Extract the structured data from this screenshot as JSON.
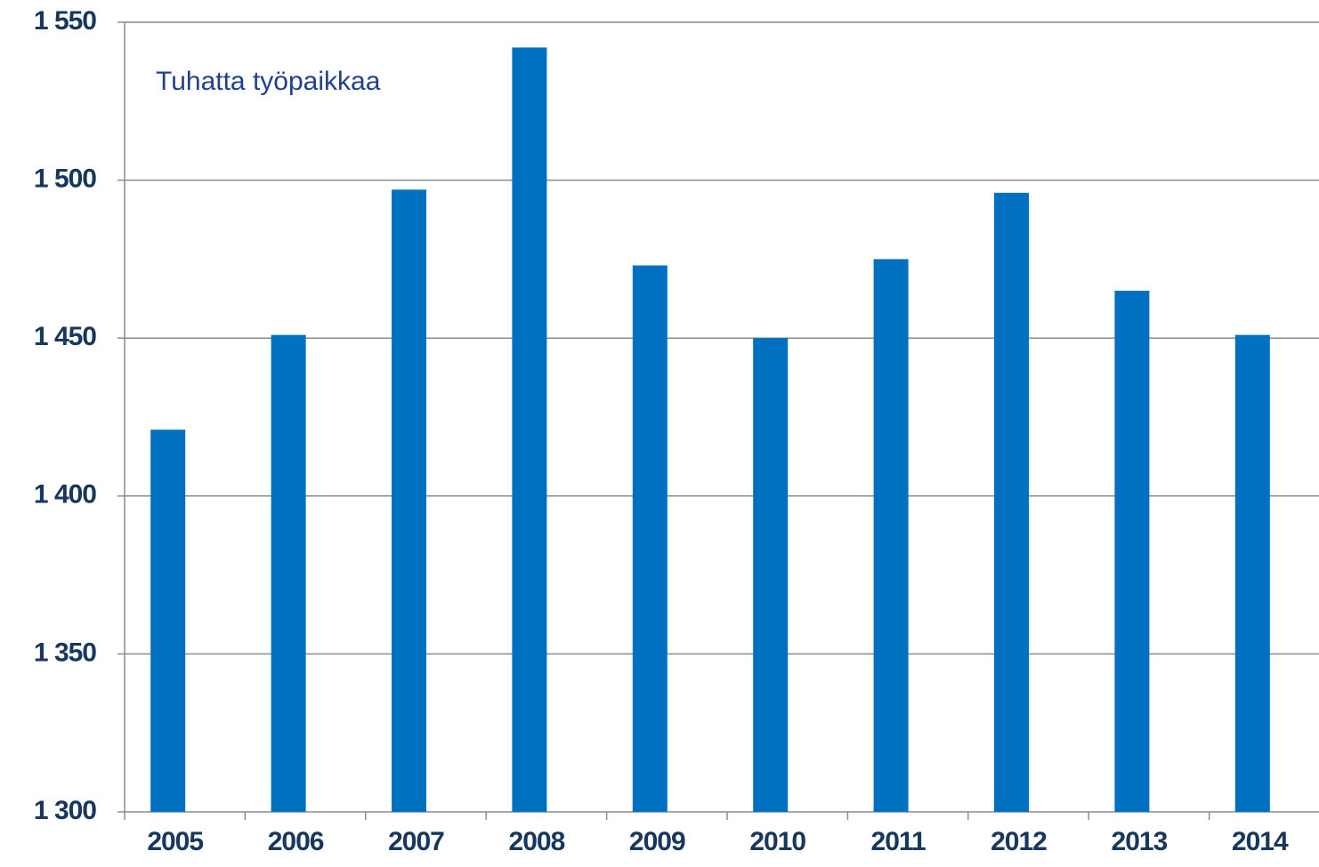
{
  "chart_data": {
    "type": "bar",
    "annotation": "Tuhatta työpaikkaa",
    "categories": [
      "2005",
      "2006",
      "2007",
      "2008",
      "2009",
      "2010",
      "2011",
      "2012",
      "2013",
      "2014"
    ],
    "values": [
      1421,
      1451,
      1497,
      1542,
      1473,
      1450,
      1475,
      1496,
      1465,
      1451
    ],
    "color": "#0070c0",
    "ylim": [
      1300,
      1550
    ],
    "yticks": [
      {
        "value": 1300,
        "label": "1 300"
      },
      {
        "value": 1350,
        "label": "1 350"
      },
      {
        "value": 1400,
        "label": "1 400"
      },
      {
        "value": 1450,
        "label": "1 450"
      },
      {
        "value": 1500,
        "label": "1 500"
      },
      {
        "value": 1550,
        "label": "1 550"
      }
    ],
    "grid": true
  }
}
